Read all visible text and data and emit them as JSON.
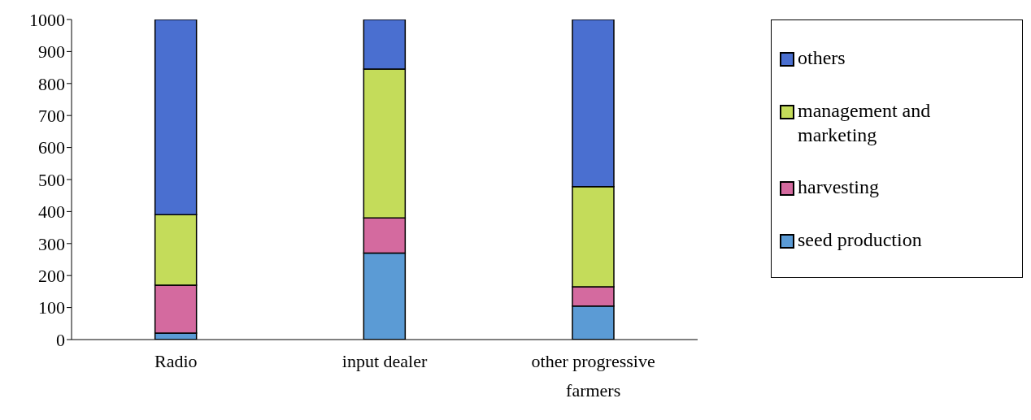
{
  "chart_data": {
    "type": "bar",
    "stacked": true,
    "categories": [
      "Radio",
      "input dealer",
      "other progressive farmers"
    ],
    "series": [
      {
        "name": "seed production",
        "color": "#5b9bd5",
        "values": [
          20,
          270,
          105
        ]
      },
      {
        "name": "harvesting",
        "color": "#d46a9f",
        "values": [
          150,
          110,
          60
        ]
      },
      {
        "name": "management and marketing",
        "color": "#c4dc5a",
        "values": [
          220,
          465,
          313
        ]
      },
      {
        "name": "others",
        "color": "#4a6fd0",
        "values": [
          610,
          155,
          522
        ]
      }
    ],
    "ylim": [
      0,
      1000
    ],
    "yticks": [
      0,
      100,
      200,
      300,
      400,
      500,
      600,
      700,
      800,
      900,
      1000
    ],
    "grid": false,
    "legend": "right"
  }
}
